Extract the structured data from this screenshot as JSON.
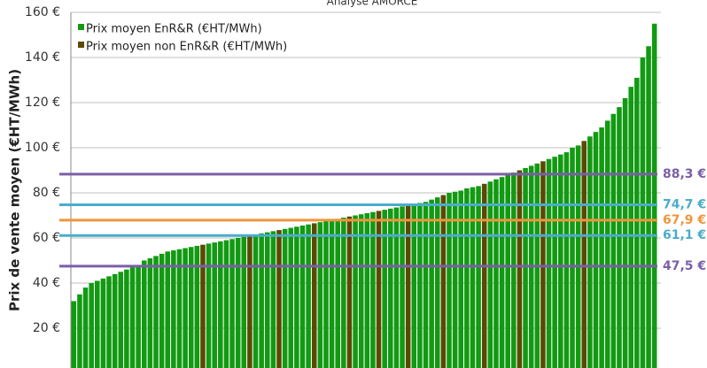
{
  "chart_data": {
    "type": "bar",
    "title": "Analyse AMORCE",
    "y_label": "Prix de vente moyen (€HT/MWh)",
    "ylim": [
      0,
      160
    ],
    "yticks": [
      {
        "value": 20,
        "label": "20 €"
      },
      {
        "value": 40,
        "label": "40 €"
      },
      {
        "value": 60,
        "label": "60 €"
      },
      {
        "value": 80,
        "label": "80 €"
      },
      {
        "value": 100,
        "label": "100 €"
      },
      {
        "value": 120,
        "label": "120 €"
      },
      {
        "value": 140,
        "label": "140 €"
      },
      {
        "value": 160,
        "label": "160 €"
      }
    ],
    "grid": true,
    "series": [
      {
        "name": "Prix moyen EnR&R (€HT/MWh)",
        "color": "#129a12",
        "values": [
          32,
          35,
          38,
          40,
          41,
          42,
          43,
          44,
          45,
          46,
          47,
          48,
          50,
          51,
          52,
          53,
          54,
          54.5,
          55,
          55.5,
          56,
          56.5,
          null,
          57.5,
          58,
          58.5,
          59,
          59.5,
          60,
          60.5,
          null,
          61.5,
          62,
          62.5,
          63,
          null,
          64,
          64.5,
          65,
          65.5,
          66,
          null,
          67,
          67.5,
          68,
          68.5,
          69,
          null,
          70,
          70.5,
          71,
          71.5,
          null,
          72.5,
          73,
          73.5,
          74,
          null,
          75,
          75.5,
          76,
          77,
          78,
          null,
          80,
          80.5,
          81,
          82,
          82.5,
          83,
          null,
          85,
          86,
          87,
          88,
          89,
          null,
          91,
          92,
          93,
          null,
          95,
          96,
          97,
          98,
          100,
          101,
          null,
          105,
          107,
          109,
          112,
          115,
          118,
          122,
          127,
          131,
          140,
          145,
          155
        ]
      },
      {
        "name": "Prix moyen non EnR&R (€HT/MWh)",
        "color": "#5a4a00",
        "values": [
          null,
          null,
          null,
          null,
          null,
          null,
          null,
          null,
          null,
          null,
          null,
          null,
          null,
          null,
          null,
          null,
          null,
          null,
          null,
          null,
          null,
          null,
          57,
          null,
          null,
          null,
          null,
          null,
          null,
          null,
          61,
          null,
          null,
          null,
          null,
          63.5,
          null,
          null,
          null,
          null,
          null,
          66.5,
          null,
          null,
          null,
          null,
          null,
          69.5,
          null,
          null,
          null,
          null,
          72,
          null,
          null,
          null,
          null,
          74.5,
          null,
          null,
          null,
          null,
          null,
          79,
          null,
          null,
          null,
          null,
          null,
          null,
          84,
          null,
          null,
          null,
          null,
          null,
          90,
          null,
          null,
          null,
          94,
          null,
          null,
          null,
          null,
          null,
          null,
          103,
          null,
          null,
          null,
          null,
          null,
          null,
          null,
          null,
          null,
          null,
          null,
          null
        ]
      }
    ],
    "reference_lines": [
      {
        "value": 88.3,
        "label": "88,3 €",
        "color": "#7b5ea7"
      },
      {
        "value": 74.7,
        "label": "74,7 €",
        "color": "#4aaccb"
      },
      {
        "value": 67.9,
        "label": "67,9 €",
        "color": "#f0953b"
      },
      {
        "value": 61.1,
        "label": "61,1 €",
        "color": "#4aaccb"
      },
      {
        "value": 47.5,
        "label": "47,5 €",
        "color": "#7b5ea7"
      }
    ]
  }
}
